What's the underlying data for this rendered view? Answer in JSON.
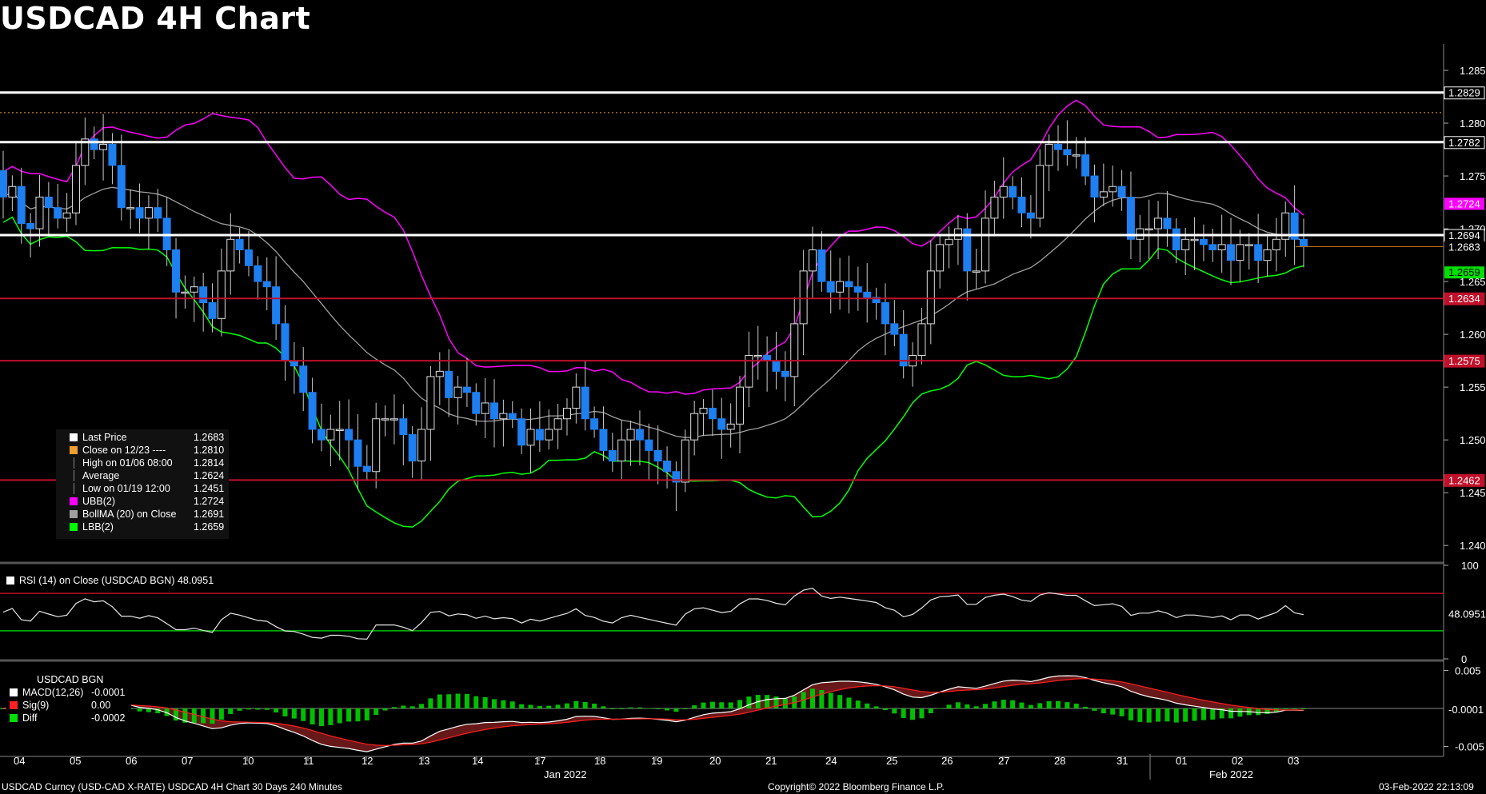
{
  "title": "USDCAD 4H Chart",
  "legend": {
    "items": [
      {
        "label": "Last Price",
        "value": "1.2683",
        "color": "#ffffff"
      },
      {
        "label": "Close on 12/23 ----",
        "value": "1.2810",
        "color": "#f0a030"
      },
      {
        "label": "High on 01/06 08:00",
        "value": "1.2814",
        "color": ""
      },
      {
        "label": "Average",
        "value": "1.2624",
        "color": ""
      },
      {
        "label": "Low on 01/19 12:00",
        "value": "1.2451",
        "color": ""
      },
      {
        "label": "UBB(2)",
        "value": "1.2724",
        "color": "#ff00ff"
      },
      {
        "label": "BollMA (20)  on Close",
        "value": "1.2691",
        "color": "#a0a0a0"
      },
      {
        "label": "LBB(2)",
        "value": "1.2659",
        "color": "#00ff00"
      }
    ]
  },
  "rsi_legend": "RSI (14)  on Close (USDCAD BGN) 48.0951",
  "macd_legend": {
    "title": "USDCAD BGN",
    "items": [
      {
        "label": "MACD(12,26)",
        "value": "-0.0001",
        "color": "#ffffff"
      },
      {
        "label": "Sig(9)",
        "value": "0.00",
        "color": "#ff2020"
      },
      {
        "label": "Diff",
        "value": "-0.0002",
        "color": "#00e000"
      }
    ]
  },
  "footer": {
    "left": "USDCAD Curncy (USD-CAD X-RATE) USDCAD 4H Chart 30 Days 240 Minutes",
    "center": "Copyright© 2022 Bloomberg Finance L.P.",
    "right": "03-Feb-2022 22:13:09"
  },
  "chart_data": {
    "type": "candlestick",
    "x_ticks": [
      "04",
      "05",
      "06",
      "07",
      "10",
      "11",
      "12",
      "13",
      "14",
      "17",
      "18",
      "19",
      "20",
      "21",
      "24",
      "25",
      "26",
      "27",
      "28",
      "31",
      "01",
      "02",
      "03"
    ],
    "month_labels": [
      "Jan 2022",
      "Feb 2022"
    ],
    "ylim": [
      1.2385,
      1.2875
    ],
    "y_ticks": [
      1.24,
      1.245,
      1.25,
      1.255,
      1.26,
      1.265,
      1.27,
      1.275,
      1.28,
      1.285
    ],
    "horizontal_lines": [
      {
        "value": 1.2829,
        "label": "1.2829",
        "color": "#ffffff",
        "label_bg": "#000000"
      },
      {
        "value": 1.2782,
        "label": "1.2782",
        "color": "#ffffff",
        "label_bg": "#000000"
      },
      {
        "value": 1.2694,
        "label": "1.2694",
        "color": "#ffffff",
        "label_bg": "#000000"
      },
      {
        "value": 1.2634,
        "label": "1.2634",
        "color": "#c0102a",
        "label_bg": "#c0102a"
      },
      {
        "value": 1.2575,
        "label": "1.2575",
        "color": "#c0102a",
        "label_bg": "#c0102a"
      },
      {
        "value": 1.2462,
        "label": "1.2462",
        "color": "#c0102a",
        "label_bg": "#c0102a"
      }
    ],
    "close_ref_line": 1.281,
    "last_price": 1.2683,
    "last_ubb": {
      "value": 1.2724,
      "label": "1.2724"
    },
    "last_lbb": {
      "value": 1.2659,
      "label": "1.2659"
    },
    "last_price_label": "1.2683",
    "closes": [
      1.273,
      1.274,
      1.2705,
      1.27,
      1.273,
      1.272,
      1.271,
      1.2715,
      1.276,
      1.2785,
      1.2775,
      1.278,
      1.276,
      1.272,
      1.272,
      1.271,
      1.272,
      1.271,
      1.268,
      1.264,
      1.264,
      1.2645,
      1.263,
      1.2615,
      1.266,
      1.269,
      1.268,
      1.2665,
      1.265,
      1.2645,
      1.261,
      1.2575,
      1.257,
      1.2545,
      1.251,
      1.25,
      1.251,
      1.251,
      1.25,
      1.2475,
      1.247,
      1.252,
      1.252,
      1.252,
      1.2505,
      1.248,
      1.251,
      1.256,
      1.2565,
      1.254,
      1.255,
      1.2545,
      1.2525,
      1.2535,
      1.252,
      1.2525,
      1.252,
      1.2495,
      1.251,
      1.25,
      1.251,
      1.252,
      1.253,
      1.255,
      1.252,
      1.251,
      1.249,
      1.248,
      1.25,
      1.251,
      1.25,
      1.249,
      1.248,
      1.247,
      1.246,
      1.25,
      1.2525,
      1.253,
      1.252,
      1.251,
      1.2515,
      1.255,
      1.258,
      1.258,
      1.2575,
      1.2565,
      1.256,
      1.261,
      1.266,
      1.268,
      1.265,
      1.264,
      1.265,
      1.2645,
      1.264,
      1.2635,
      1.263,
      1.261,
      1.26,
      1.257,
      1.258,
      1.261,
      1.266,
      1.2685,
      1.269,
      1.27,
      1.266,
      1.266,
      1.271,
      1.273,
      1.274,
      1.273,
      1.2715,
      1.271,
      1.276,
      1.278,
      1.2775,
      1.277,
      1.277,
      1.275,
      1.273,
      1.2735,
      1.274,
      1.273,
      1.269,
      1.27,
      1.27,
      1.271,
      1.27,
      1.268,
      1.269,
      1.269,
      1.2685,
      1.268,
      1.2685,
      1.267,
      1.2685,
      1.2685,
      1.267,
      1.268,
      1.269,
      1.2715,
      1.269,
      1.2683
    ],
    "rsi": {
      "ylim": [
        0,
        100
      ],
      "y_ticks": [
        0,
        100
      ],
      "upper": 70,
      "lower": 30,
      "last": "48.0951"
    },
    "macd": {
      "ylim": [
        -0.006,
        0.006
      ],
      "y_ticks": [
        "0.005",
        "-0.005"
      ],
      "last": "-0.0001"
    }
  }
}
